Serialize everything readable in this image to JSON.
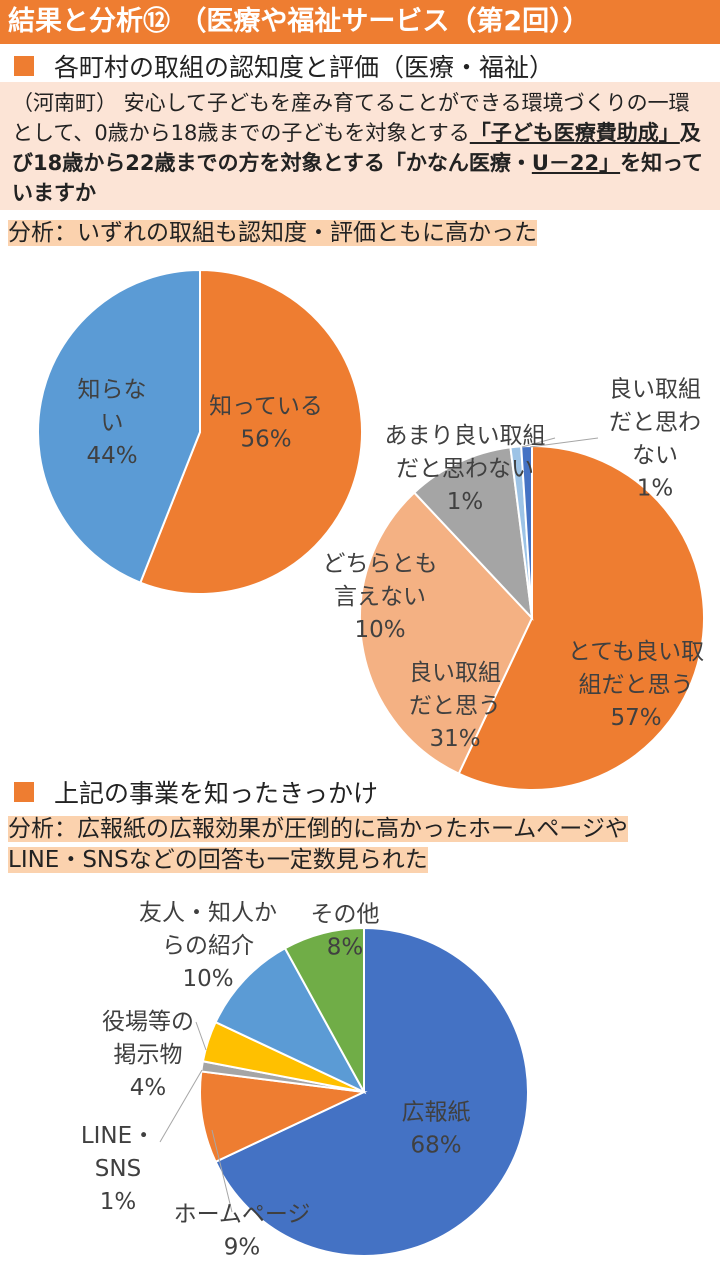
{
  "header": {
    "title": "結果と分析⑫ （医療や福祉サービス（第2回））"
  },
  "section1": {
    "heading": "各町村の取組の認知度と評価（医療・福祉）"
  },
  "question": {
    "part1": "（河南町） 安心して子どもを産み育てることができる環境づくりの一環として、0歳から18歳までの子どもを対象とする",
    "emph1": "「子ども医療費助成」",
    "part2": "及び18歳から22歳までの方を対象とする「かなん医療・",
    "emph2": "U－22」",
    "part3": "を知っていますか"
  },
  "analysis1": "分析：いずれの取組も認知度・評価ともに高かった",
  "section2": {
    "heading": "上記の事業を知ったきっかけ"
  },
  "analysis2": {
    "line1": "分析：広報紙の広報効果が圧倒的に高かったホームページや",
    "line2": "LINE・SNSなどの回答も一定数見られた"
  },
  "chart_data": [
    {
      "type": "pie",
      "title": "",
      "slices": [
        {
          "label_lines": [
            "知っている"
          ],
          "value": 56,
          "pct": "56%",
          "color": "#ee7d31"
        },
        {
          "label_lines": [
            "知らな",
            "い"
          ],
          "value": 44,
          "pct": "44%",
          "color": "#5b9bd5"
        }
      ]
    },
    {
      "type": "pie",
      "title": "",
      "slices": [
        {
          "label_lines": [
            "とても良い取",
            "組だと思う"
          ],
          "value": 57,
          "pct": "57%",
          "color": "#ee7d31"
        },
        {
          "label_lines": [
            "良い取組",
            "だと思う"
          ],
          "value": 31,
          "pct": "31%",
          "color": "#f4b183"
        },
        {
          "label_lines": [
            "どちらとも",
            "言えない"
          ],
          "value": 10,
          "pct": "10%",
          "color": "#a5a5a5"
        },
        {
          "label_lines": [
            "あまり良い取組",
            "だと思わない"
          ],
          "value": 1,
          "pct": "1%",
          "color": "#9dc3e6"
        },
        {
          "label_lines": [
            "良い取組",
            "だと思わ",
            "ない"
          ],
          "value": 1,
          "pct": "1%",
          "color": "#4472c4"
        }
      ]
    },
    {
      "type": "pie",
      "title": "",
      "slices": [
        {
          "label_lines": [
            "広報紙"
          ],
          "value": 68,
          "pct": "68%",
          "color": "#4472c4"
        },
        {
          "label_lines": [
            "ホームページ"
          ],
          "value": 9,
          "pct": "9%",
          "color": "#ee7d31"
        },
        {
          "label_lines": [
            "LINE・",
            "SNS"
          ],
          "value": 1,
          "pct": "1%",
          "color": "#a5a5a5"
        },
        {
          "label_lines": [
            "役場等の",
            "掲示物"
          ],
          "value": 4,
          "pct": "4%",
          "color": "#ffc000"
        },
        {
          "label_lines": [
            "友人・知人か",
            "らの紹介"
          ],
          "value": 10,
          "pct": "10%",
          "color": "#5b9bd5"
        },
        {
          "label_lines": [
            "その他"
          ],
          "value": 8,
          "pct": "8%",
          "color": "#70ad47"
        }
      ]
    }
  ]
}
